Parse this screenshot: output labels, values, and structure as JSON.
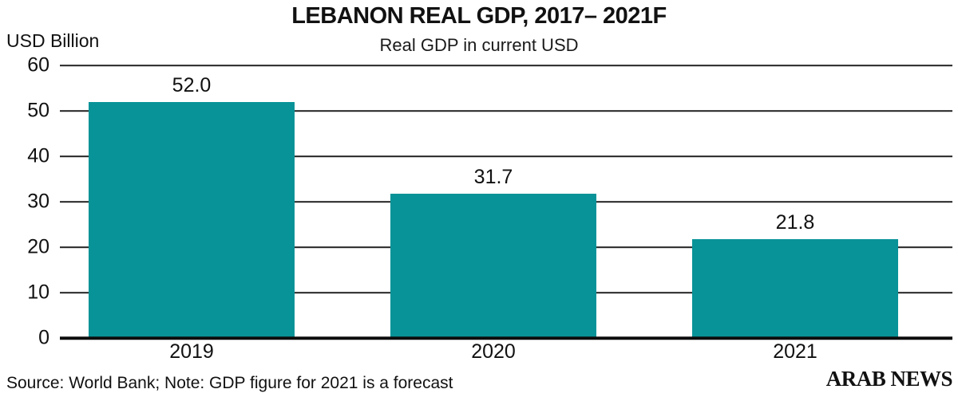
{
  "header": {
    "title": "LEBANON REAL GDP, 2017– 2021F",
    "subtitle": "Real GDP in current USD",
    "y_axis_label": "USD Billion"
  },
  "chart_data": {
    "type": "bar",
    "categories": [
      "2019",
      "2020",
      "2021"
    ],
    "values": [
      52.0,
      31.7,
      21.8
    ],
    "value_labels": [
      "52.0",
      "31.7",
      "21.8"
    ],
    "title": "LEBANON REAL GDP, 2017– 2021F",
    "subtitle": "Real GDP in current USD",
    "xlabel": "",
    "ylabel": "USD Billion",
    "ylim": [
      0,
      60
    ],
    "yticks": [
      0,
      10,
      20,
      30,
      40,
      50,
      60
    ],
    "grid": true,
    "legend": "none",
    "bar_color": "#089398"
  },
  "footer": {
    "source_note": "Source: World Bank; Note: GDP figure for 2021 is a forecast",
    "brand": "ARAB NEWS"
  },
  "colors": {
    "bar": "#089398",
    "text": "#111111",
    "gridline": "#232323",
    "baseline": "#0d0d0d",
    "background": "#ffffff"
  }
}
